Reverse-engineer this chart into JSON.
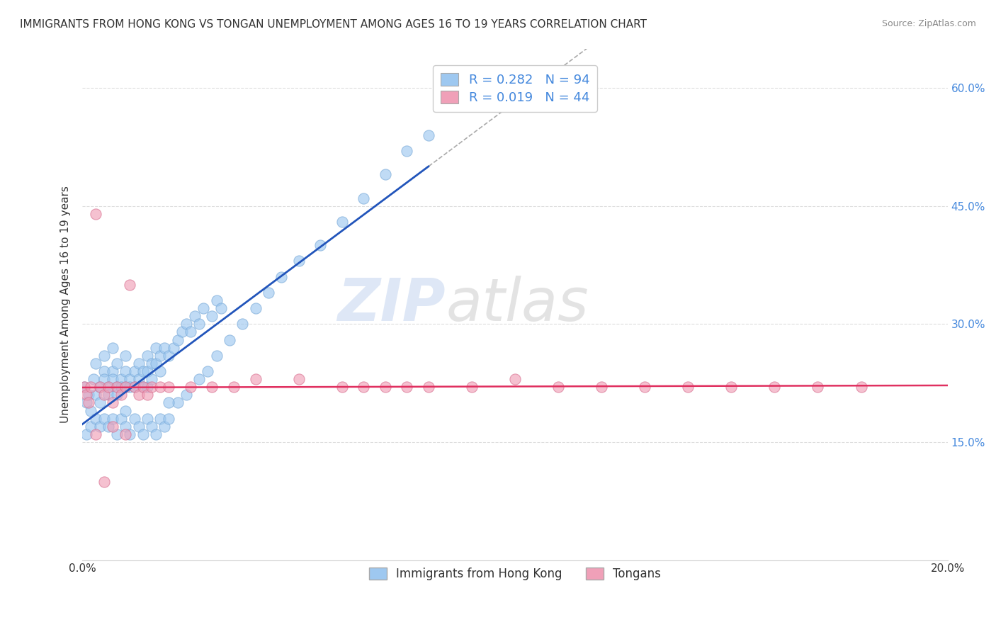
{
  "title": "IMMIGRANTS FROM HONG KONG VS TONGAN UNEMPLOYMENT AMONG AGES 16 TO 19 YEARS CORRELATION CHART",
  "source": "Source: ZipAtlas.com",
  "ylabel": "Unemployment Among Ages 16 to 19 years",
  "xlim": [
    0.0,
    0.2
  ],
  "ylim": [
    0.0,
    0.65
  ],
  "xticks": [
    0.0,
    0.05,
    0.1,
    0.15,
    0.2
  ],
  "xticklabels": [
    "0.0%",
    "",
    "",
    "",
    "20.0%"
  ],
  "yticks": [
    0.0,
    0.15,
    0.3,
    0.45,
    0.6
  ],
  "yticklabels": [
    "",
    "15.0%",
    "30.0%",
    "45.0%",
    "60.0%"
  ],
  "hk_color": "#9ec8f0",
  "tongan_color": "#f0a0b8",
  "hk_line_color": "#2255bb",
  "tongan_line_color": "#e03060",
  "R_hk": 0.282,
  "N_hk": 94,
  "R_tongan": 0.019,
  "N_tongan": 44,
  "legend_label_hk": "Immigrants from Hong Kong",
  "legend_label_tongan": "Tongans",
  "watermark_zip": "ZIP",
  "watermark_atlas": "atlas",
  "background_color": "#ffffff",
  "grid_color": "#dddddd",
  "legend_text_color": "#4488dd",
  "ytick_color": "#4488dd",
  "hk_scatter_x": [
    0.0005,
    0.001,
    0.0015,
    0.002,
    0.0025,
    0.003,
    0.003,
    0.004,
    0.004,
    0.005,
    0.005,
    0.005,
    0.006,
    0.006,
    0.007,
    0.007,
    0.007,
    0.008,
    0.008,
    0.008,
    0.009,
    0.009,
    0.01,
    0.01,
    0.01,
    0.011,
    0.011,
    0.012,
    0.012,
    0.013,
    0.013,
    0.014,
    0.014,
    0.015,
    0.015,
    0.015,
    0.016,
    0.016,
    0.017,
    0.017,
    0.018,
    0.018,
    0.019,
    0.02,
    0.021,
    0.022,
    0.023,
    0.024,
    0.025,
    0.026,
    0.027,
    0.028,
    0.03,
    0.031,
    0.032,
    0.001,
    0.002,
    0.003,
    0.004,
    0.005,
    0.006,
    0.007,
    0.008,
    0.009,
    0.01,
    0.011,
    0.012,
    0.013,
    0.014,
    0.015,
    0.016,
    0.017,
    0.018,
    0.019,
    0.02,
    0.022,
    0.024,
    0.027,
    0.029,
    0.031,
    0.034,
    0.037,
    0.04,
    0.043,
    0.046,
    0.05,
    0.055,
    0.06,
    0.065,
    0.07,
    0.075,
    0.08,
    0.01,
    0.02
  ],
  "hk_scatter_y": [
    0.22,
    0.2,
    0.21,
    0.19,
    0.23,
    0.21,
    0.25,
    0.22,
    0.2,
    0.24,
    0.23,
    0.26,
    0.22,
    0.21,
    0.24,
    0.23,
    0.27,
    0.22,
    0.21,
    0.25,
    0.23,
    0.22,
    0.24,
    0.22,
    0.26,
    0.23,
    0.22,
    0.24,
    0.22,
    0.25,
    0.23,
    0.24,
    0.22,
    0.26,
    0.24,
    0.22,
    0.25,
    0.23,
    0.27,
    0.25,
    0.26,
    0.24,
    0.27,
    0.26,
    0.27,
    0.28,
    0.29,
    0.3,
    0.29,
    0.31,
    0.3,
    0.32,
    0.31,
    0.33,
    0.32,
    0.16,
    0.17,
    0.18,
    0.17,
    0.18,
    0.17,
    0.18,
    0.16,
    0.18,
    0.17,
    0.16,
    0.18,
    0.17,
    0.16,
    0.18,
    0.17,
    0.16,
    0.18,
    0.17,
    0.18,
    0.2,
    0.21,
    0.23,
    0.24,
    0.26,
    0.28,
    0.3,
    0.32,
    0.34,
    0.36,
    0.38,
    0.4,
    0.43,
    0.46,
    0.49,
    0.52,
    0.54,
    0.19,
    0.2
  ],
  "tongan_scatter_x": [
    0.0005,
    0.001,
    0.0015,
    0.002,
    0.003,
    0.004,
    0.005,
    0.006,
    0.007,
    0.008,
    0.009,
    0.01,
    0.011,
    0.012,
    0.013,
    0.014,
    0.015,
    0.016,
    0.018,
    0.02,
    0.025,
    0.03,
    0.035,
    0.04,
    0.05,
    0.06,
    0.065,
    0.07,
    0.075,
    0.08,
    0.09,
    0.1,
    0.11,
    0.12,
    0.13,
    0.14,
    0.15,
    0.16,
    0.17,
    0.18,
    0.003,
    0.005,
    0.007,
    0.01
  ],
  "tongan_scatter_y": [
    0.22,
    0.21,
    0.2,
    0.22,
    0.44,
    0.22,
    0.21,
    0.22,
    0.2,
    0.22,
    0.21,
    0.22,
    0.35,
    0.22,
    0.21,
    0.22,
    0.21,
    0.22,
    0.22,
    0.22,
    0.22,
    0.22,
    0.22,
    0.23,
    0.23,
    0.22,
    0.22,
    0.22,
    0.22,
    0.22,
    0.22,
    0.23,
    0.22,
    0.22,
    0.22,
    0.22,
    0.22,
    0.22,
    0.22,
    0.22,
    0.16,
    0.1,
    0.17,
    0.16
  ]
}
